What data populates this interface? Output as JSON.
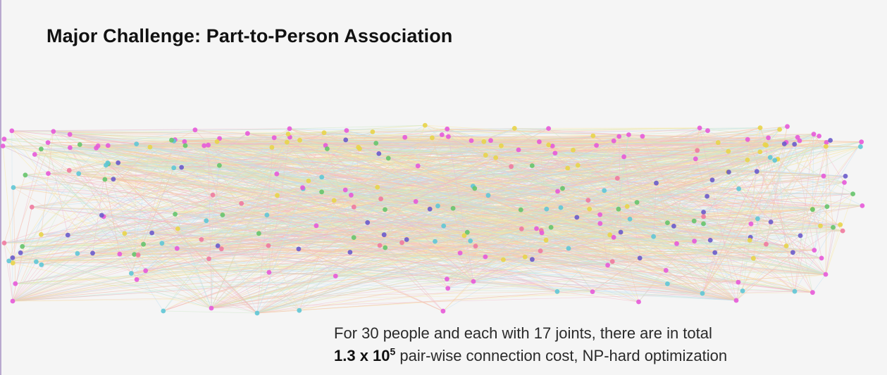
{
  "slide": {
    "title": "Major Challenge: Part-to-Person Association",
    "caption": {
      "line1": "For 30 people and each with 17 joints, there are in total",
      "line2_bold_base": "1.3 x 10",
      "line2_bold_exp": "5",
      "line2_rest": " pair-wise connection cost, NP-hard optimization"
    }
  },
  "graph": {
    "node_colors": [
      "#e75ad9",
      "#e8d44a",
      "#5fc6d6",
      "#66c46b",
      "#6a5bcb",
      "#f07aa0"
    ],
    "edge_colors": [
      "#f6c7a8",
      "#bfe0f2",
      "#f7e7a3",
      "#f4b6c6",
      "#c9e7c3"
    ]
  }
}
